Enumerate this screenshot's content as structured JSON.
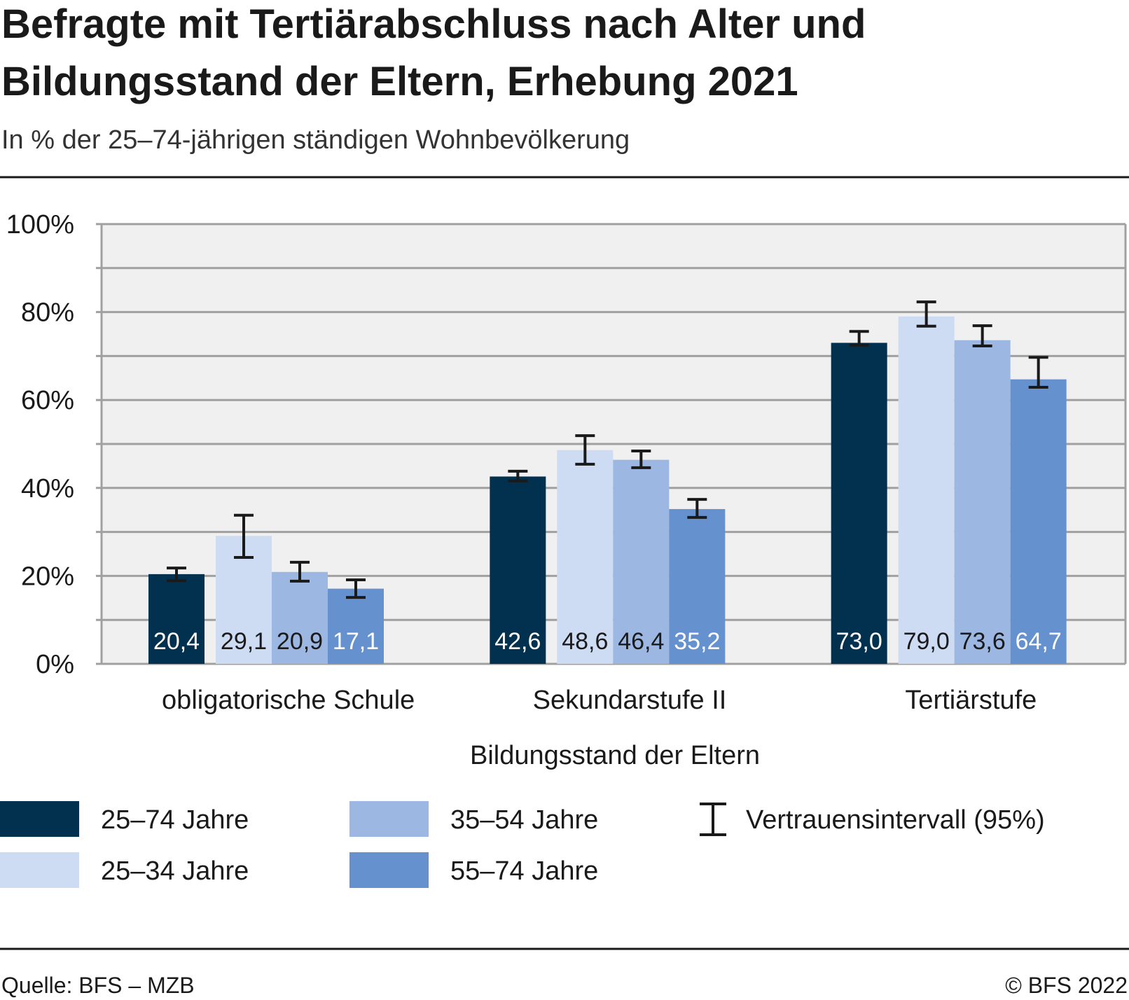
{
  "chart_data": {
    "type": "bar",
    "title": "Befragte mit Tertiärabschluss nach Alter und Bildungsstand der Eltern, Erhebung 2021",
    "title_lines": [
      "Befragte mit Tertiärabschluss nach Alter und",
      "Bildungsstand der Eltern, Erhebung 2021"
    ],
    "subtitle": "In % der 25–74-jährigen ständigen Wohnbevölkerung",
    "xlabel": "Bildungsstand der Eltern",
    "ylabel": "",
    "ylim": [
      0,
      100
    ],
    "yticks": [
      0,
      20,
      40,
      60,
      80,
      100
    ],
    "ytick_labels": [
      "0%",
      "20%",
      "40%",
      "60%",
      "80%",
      "100%"
    ],
    "grid": true,
    "categories": [
      "obligatorische Schule",
      "Sekundarstufe II",
      "Tertiärstufe"
    ],
    "series": [
      {
        "name": "25–74 Jahre",
        "color": "#02304f",
        "label_color": "#ffffff",
        "values": [
          20.4,
          42.6,
          73.0
        ],
        "labels": [
          "20,4",
          "42,6",
          "73,0"
        ],
        "ci": [
          [
            18.9,
            21.8
          ],
          [
            41.6,
            43.8
          ],
          [
            72.5,
            75.6
          ]
        ]
      },
      {
        "name": "25–34 Jahre",
        "color": "#cddbf3",
        "label_color": "#1a1a1a",
        "values": [
          29.1,
          48.6,
          79.0
        ],
        "labels": [
          "29,1",
          "48,6",
          "79,0"
        ],
        "ci": [
          [
            24.2,
            33.8
          ],
          [
            45.4,
            51.9
          ],
          [
            76.8,
            82.3
          ]
        ]
      },
      {
        "name": "35–54 Jahre",
        "color": "#9bb7e2",
        "label_color": "#1a1a1a",
        "values": [
          20.9,
          46.4,
          73.6
        ],
        "labels": [
          "20,9",
          "46,4",
          "73,6"
        ],
        "ci": [
          [
            18.8,
            23.1
          ],
          [
            44.6,
            48.4
          ],
          [
            72.3,
            76.9
          ]
        ]
      },
      {
        "name": "55–74 Jahre",
        "color": "#6592cf",
        "label_color": "#ffffff",
        "values": [
          17.1,
          35.2,
          64.7
        ],
        "labels": [
          "17,1",
          "35,2",
          "64,7"
        ],
        "ci": [
          [
            15.1,
            19.1
          ],
          [
            33.3,
            37.4
          ],
          [
            62.9,
            69.7
          ]
        ]
      }
    ],
    "legend": {
      "placement": "bottom",
      "ci_label": "Vertrauensintervall (95%)"
    },
    "plot_background": "#f0f0f0",
    "grid_color": "#a0a0a0"
  },
  "footer": {
    "source": "Quelle: BFS – MZB",
    "copyright": "© BFS 2022"
  }
}
